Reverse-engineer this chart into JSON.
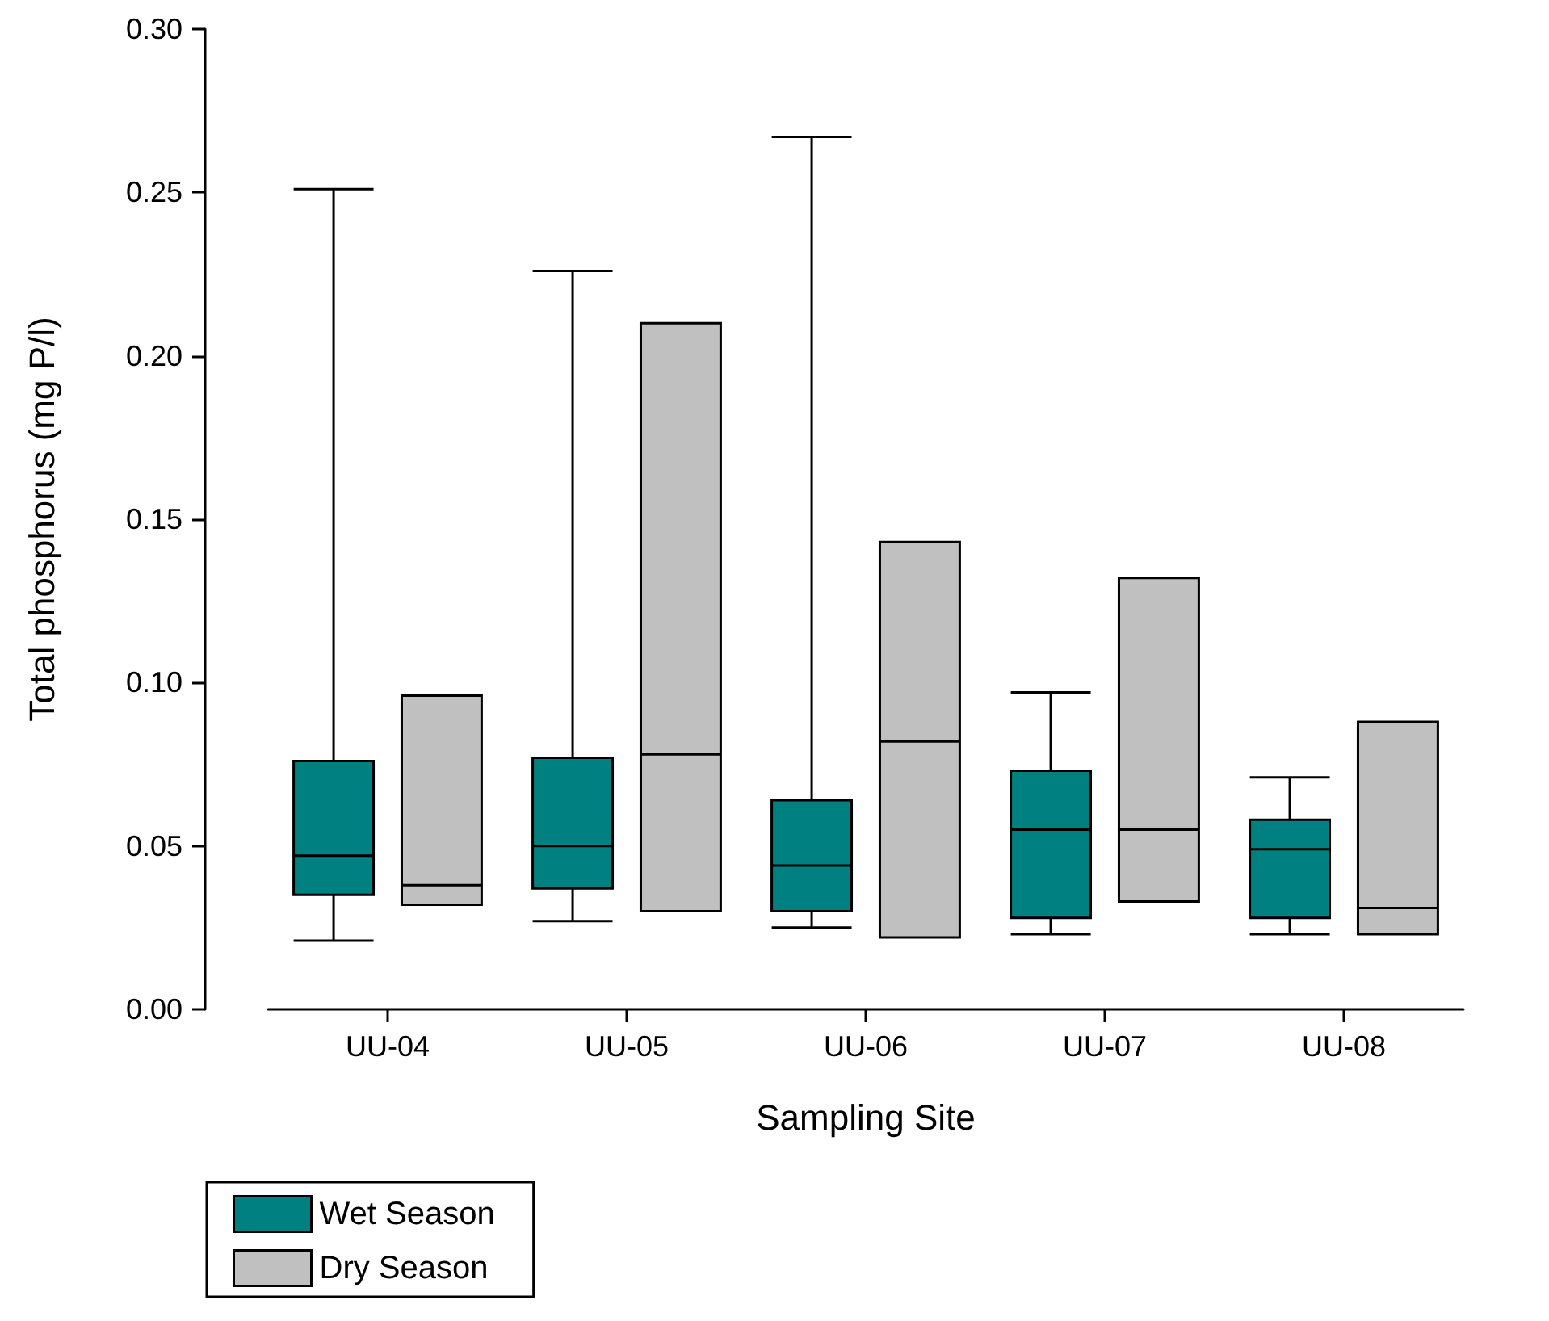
{
  "chart_data": {
    "type": "box",
    "xlabel": "Sampling Site",
    "ylabel": "Total phosphorus (mg P/l)",
    "categories": [
      "UU-04",
      "UU-05",
      "UU-06",
      "UU-07",
      "UU-08"
    ],
    "ylim": [
      0,
      0.3
    ],
    "yticks": [
      {
        "value": 0,
        "label": "0.00"
      },
      {
        "value": 0.05,
        "label": "0.05"
      },
      {
        "value": 0.1,
        "label": "0.10"
      },
      {
        "value": 0.15,
        "label": "0.15"
      },
      {
        "value": 0.2,
        "label": "0.20"
      },
      {
        "value": 0.25,
        "label": "0.25"
      },
      {
        "value": 0.3,
        "label": "0.30"
      }
    ],
    "grid": false,
    "legend": "bottom left",
    "series": [
      {
        "name": "Wet Season",
        "color": "#008080",
        "boxes": [
          {
            "low": 0.021,
            "q1": 0.035,
            "median": 0.047,
            "q3": 0.076,
            "high": 0.251
          },
          {
            "low": 0.027,
            "q1": 0.037,
            "median": 0.05,
            "q3": 0.077,
            "high": 0.226
          },
          {
            "low": 0.025,
            "q1": 0.03,
            "median": 0.044,
            "q3": 0.064,
            "high": 0.267
          },
          {
            "low": 0.023,
            "q1": 0.028,
            "median": 0.055,
            "q3": 0.073,
            "high": 0.097
          },
          {
            "low": 0.023,
            "q1": 0.028,
            "median": 0.049,
            "q3": 0.058,
            "high": 0.071
          }
        ]
      },
      {
        "name": "Dry Season",
        "color": "#c0c0c0",
        "boxes": [
          {
            "low": 0.032,
            "q1": 0.032,
            "median": 0.038,
            "q3": 0.096,
            "high": 0.096
          },
          {
            "low": 0.03,
            "q1": 0.03,
            "median": 0.078,
            "q3": 0.21,
            "high": 0.21
          },
          {
            "low": 0.022,
            "q1": 0.022,
            "median": 0.082,
            "q3": 0.143,
            "high": 0.143
          },
          {
            "low": 0.033,
            "q1": 0.033,
            "median": 0.055,
            "q3": 0.132,
            "high": 0.132
          },
          {
            "low": 0.023,
            "q1": 0.023,
            "median": 0.031,
            "q3": 0.088,
            "high": 0.088
          }
        ]
      }
    ]
  }
}
